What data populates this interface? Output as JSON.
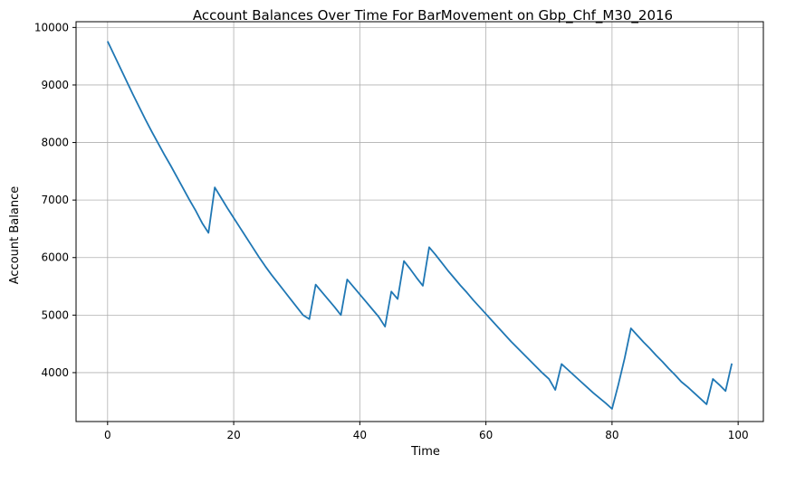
{
  "chart_data": {
    "type": "line",
    "title": "Account Balances Over Time For BarMovement on Gbp_Chf_M30_2016",
    "xlabel": "Time",
    "ylabel": "Account Balance",
    "xlim": [
      -5,
      104
    ],
    "ylim": [
      3150,
      10100
    ],
    "xticks": [
      0,
      20,
      40,
      60,
      80,
      100
    ],
    "yticks": [
      4000,
      5000,
      6000,
      7000,
      8000,
      9000,
      10000
    ],
    "grid": true,
    "line_color": "#1f77b4",
    "series": [
      {
        "x": [
          0,
          1,
          2,
          3,
          4,
          5,
          6,
          7,
          8,
          9,
          10,
          11,
          12,
          13,
          14,
          15,
          16,
          17,
          18,
          19,
          20,
          21,
          22,
          23,
          24,
          25,
          26,
          27,
          28,
          29,
          30,
          31,
          32,
          33,
          34,
          35,
          36,
          37,
          38,
          39,
          40,
          41,
          42,
          43,
          44,
          45,
          46,
          47,
          48,
          49,
          50,
          51,
          52,
          53,
          54,
          55,
          56,
          57,
          58,
          59,
          60,
          61,
          62,
          63,
          64,
          65,
          66,
          67,
          68,
          69,
          70,
          71,
          72,
          73,
          74,
          75,
          76,
          77,
          78,
          79,
          80,
          81,
          82,
          83,
          84,
          85,
          86,
          87,
          88,
          89,
          90,
          91,
          92,
          93,
          94,
          95,
          96,
          97,
          98,
          99
        ],
        "values": [
          9760,
          9530,
          9300,
          9070,
          8840,
          8620,
          8400,
          8190,
          7990,
          7790,
          7600,
          7400,
          7200,
          7000,
          6810,
          6600,
          6430,
          7220,
          7040,
          6860,
          6690,
          6520,
          6350,
          6180,
          6010,
          5850,
          5700,
          5560,
          5420,
          5280,
          5140,
          5000,
          4930,
          5530,
          5400,
          5270,
          5140,
          5000,
          5620,
          5490,
          5360,
          5230,
          5100,
          4970,
          4800,
          5410,
          5280,
          5940,
          5800,
          5650,
          5510,
          6180,
          6050,
          5910,
          5770,
          5640,
          5510,
          5390,
          5260,
          5140,
          5020,
          4900,
          4780,
          4660,
          4540,
          4430,
          4320,
          4210,
          4100,
          3990,
          3890,
          3700,
          4150,
          4050,
          3950,
          3850,
          3750,
          3650,
          3560,
          3470,
          3370,
          3790,
          4250,
          4770,
          4650,
          4530,
          4420,
          4300,
          4190,
          4070,
          3960,
          3840,
          3750,
          3650,
          3550,
          3450,
          3890,
          3790,
          3680,
          4160
        ]
      }
    ]
  }
}
